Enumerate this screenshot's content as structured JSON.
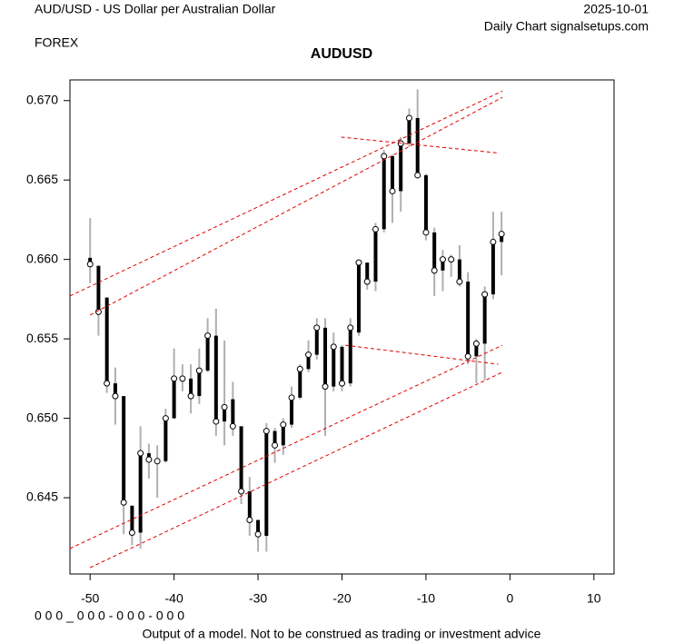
{
  "chart_data": {
    "type": "ohlc",
    "header_left": "AUD/USD - US Dollar per Australian Dollar",
    "date": "2025-10-01",
    "source": "Daily Chart signalsetups.com",
    "market": "FOREX",
    "title": "AUDUSD",
    "code_line": "0 0 0 _ 0 0 0 - 0 0 0 - 0 0 0",
    "disclaimer": "Output of a model. Not to be construed as trading or investment advice",
    "x": [
      -50,
      -49,
      -48,
      -47,
      -46,
      -45,
      -44,
      -43,
      -42,
      -41,
      -40,
      -39,
      -38,
      -37,
      -36,
      -35,
      -34,
      -33,
      -32,
      -31,
      -30,
      -29,
      -28,
      -27,
      -26,
      -25,
      -24,
      -23,
      -22,
      -21,
      -20,
      -19,
      -18,
      -17,
      -16,
      -15,
      -14,
      -13,
      -12,
      -11,
      -10,
      -9,
      -8,
      -7,
      -6,
      -5,
      -4,
      -3,
      -2,
      -1
    ],
    "open": [
      0.6601,
      0.6596,
      0.6576,
      0.6522,
      0.6514,
      0.6445,
      0.6428,
      0.6478,
      0.6474,
      0.6473,
      0.65,
      0.6525,
      0.6525,
      0.6514,
      0.653,
      0.6552,
      0.6498,
      0.6512,
      0.6495,
      0.6454,
      0.6436,
      0.6426,
      0.6492,
      0.6483,
      0.6496,
      0.6513,
      0.6531,
      0.654,
      0.6557,
      0.652,
      0.6545,
      0.6522,
      0.6554,
      0.6598,
      0.6586,
      0.6619,
      0.6665,
      0.6643,
      0.6673,
      0.6689,
      0.6653,
      0.6617,
      0.6593,
      0.66,
      0.66,
      0.6586,
      0.6539,
      0.6547,
      0.6578,
      0.6611
    ],
    "high": [
      0.6626,
      0.6596,
      0.6576,
      0.6532,
      0.6514,
      0.6445,
      0.6495,
      0.6484,
      0.6483,
      0.6506,
      0.6544,
      0.6534,
      0.6534,
      0.6544,
      0.6563,
      0.6569,
      0.6549,
      0.6523,
      0.6495,
      0.6463,
      0.6436,
      0.6497,
      0.6494,
      0.65,
      0.652,
      0.6534,
      0.6549,
      0.6563,
      0.6563,
      0.6554,
      0.6546,
      0.6563,
      0.66,
      0.6598,
      0.6623,
      0.6669,
      0.6666,
      0.6677,
      0.6695,
      0.6707,
      0.6654,
      0.662,
      0.6606,
      0.6603,
      0.6609,
      0.6592,
      0.655,
      0.6583,
      0.663,
      0.663
    ],
    "low": [
      0.6585,
      0.6552,
      0.6516,
      0.6496,
      0.6427,
      0.642,
      0.6418,
      0.6462,
      0.645,
      0.6472,
      0.65,
      0.6517,
      0.6503,
      0.6509,
      0.6529,
      0.6489,
      0.6483,
      0.6489,
      0.6446,
      0.6426,
      0.6416,
      0.6416,
      0.6472,
      0.6477,
      0.6494,
      0.6512,
      0.6529,
      0.6537,
      0.6489,
      0.6517,
      0.6517,
      0.652,
      0.6552,
      0.6581,
      0.658,
      0.6617,
      0.6623,
      0.663,
      0.6671,
      0.6651,
      0.6612,
      0.6577,
      0.658,
      0.6589,
      0.6583,
      0.6534,
      0.6522,
      0.6524,
      0.6575,
      0.659
    ],
    "close": [
      0.6597,
      0.6567,
      0.6522,
      0.6514,
      0.6447,
      0.6428,
      0.6478,
      0.6474,
      0.6473,
      0.65,
      0.6525,
      0.6525,
      0.6514,
      0.653,
      0.6552,
      0.6498,
      0.6507,
      0.6495,
      0.6454,
      0.6436,
      0.6427,
      0.6492,
      0.6483,
      0.6496,
      0.6513,
      0.6531,
      0.654,
      0.6557,
      0.652,
      0.6545,
      0.6522,
      0.6557,
      0.6598,
      0.6586,
      0.6619,
      0.6665,
      0.6643,
      0.6673,
      0.6689,
      0.6653,
      0.6617,
      0.6593,
      0.66,
      0.66,
      0.6586,
      0.6539,
      0.6547,
      0.6578,
      0.6611,
      0.6616
    ],
    "range_color": "#b0b0b0",
    "body_color": "#000000",
    "trendline_color": "#e00000",
    "trendlines": [
      {
        "x": [
          -52.4,
          -0.9
        ],
        "y": [
          0.6577,
          0.6706
        ]
      },
      {
        "x": [
          -50,
          -0.9
        ],
        "y": [
          0.6565,
          0.6702
        ]
      },
      {
        "x": [
          -20.1,
          -1.4
        ],
        "y": [
          0.6677,
          0.6667
        ]
      },
      {
        "x": [
          -52.4,
          -0.9
        ],
        "y": [
          0.6418,
          0.6546
        ]
      },
      {
        "x": [
          -50,
          -0.9
        ],
        "y": [
          0.6406,
          0.6529
        ]
      },
      {
        "x": [
          -19.6,
          -1.4
        ],
        "y": [
          0.6546,
          0.6534
        ]
      }
    ],
    "xlim": [
      -52.4,
      12.4
    ],
    "ylim": [
      0.6402,
      0.6713
    ],
    "xticks": [
      -50,
      -40,
      -30,
      -20,
      -10,
      0,
      10
    ],
    "yticks": [
      0.645,
      {
        "value": 0.65,
        "label": "0.650"
      },
      0.655,
      {
        "value": 0.66,
        "label": "0.660"
      },
      0.665,
      {
        "value": 0.67,
        "label": "0.670"
      }
    ]
  }
}
